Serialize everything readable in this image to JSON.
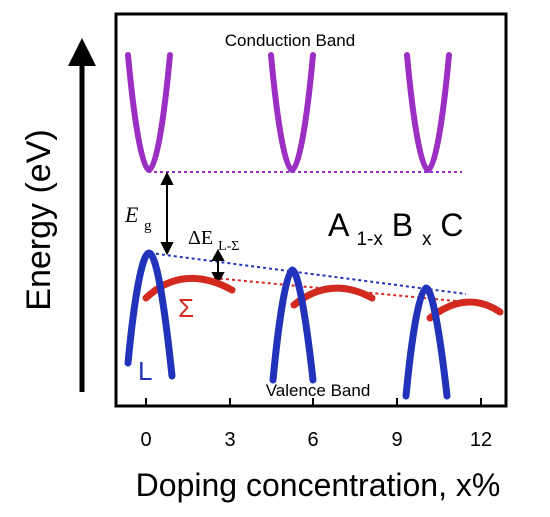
{
  "figure": {
    "y_axis_label": "Energy (eV)",
    "x_axis_label": "Doping concentration, x%",
    "x_ticks": [
      "0",
      "3",
      "6",
      "9",
      "12"
    ],
    "conduction_band_label": "Conduction Band",
    "valence_band_label": "Valence Band",
    "gap_symbol": "E",
    "gap_subscript": "g",
    "delta_symbol": "ΔE",
    "delta_subscript": "L-Σ",
    "compound": {
      "a": "A",
      "a_sub": "1-x",
      "b": "B",
      "b_sub": "x",
      "c": "C"
    },
    "sigma_label": "Σ",
    "l_label": "L"
  },
  "colors": {
    "conduction_band": "#9b2fc3",
    "l_valley": "#2233bb",
    "sigma_valley": "#d22a1e",
    "frame": "#000000"
  }
}
